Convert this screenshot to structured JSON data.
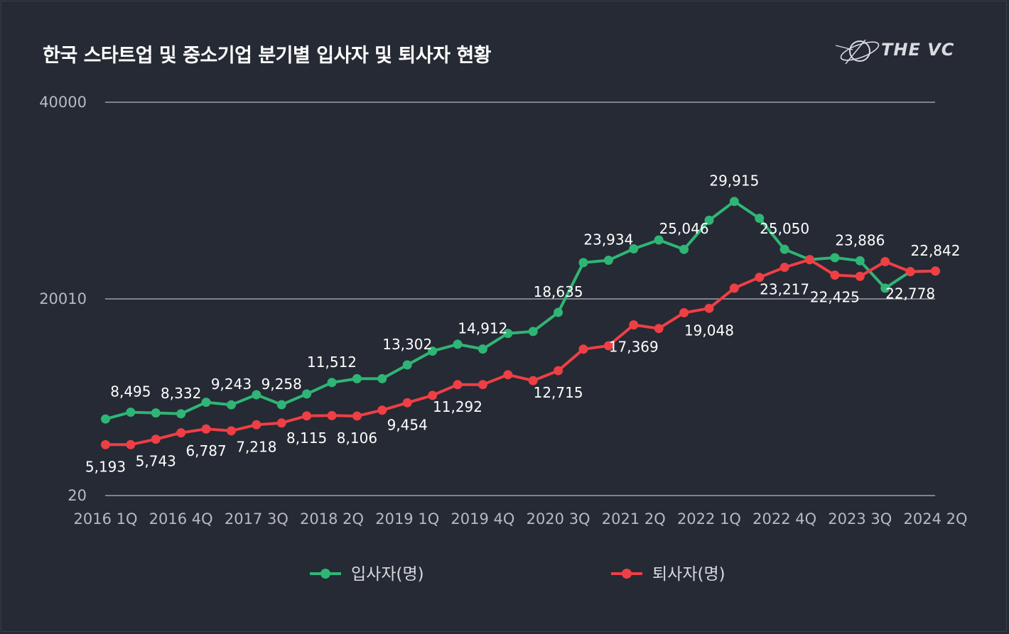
{
  "title": "한국 스타트업 및 중소기업 분기별 입사자 및 퇴사자 현황",
  "brand": "THE VC",
  "colors": {
    "background": "#252a34",
    "hires": "#2fb575",
    "leavers": "#ee3f45",
    "grid": "#d9dbe0"
  },
  "chart_data": {
    "type": "line",
    "title": "한국 스타트업 및 중소기업 분기별 입사자 및 퇴사자 현황",
    "categories": [
      "2016 1Q",
      "2016 2Q",
      "2016 3Q",
      "2016 4Q",
      "2017 1Q",
      "2017 2Q",
      "2017 3Q",
      "2017 4Q",
      "2018 1Q",
      "2018 2Q",
      "2018 3Q",
      "2018 4Q",
      "2019 1Q",
      "2019 2Q",
      "2019 3Q",
      "2019 4Q",
      "2020 1Q",
      "2020 2Q",
      "2020 3Q",
      "2020 4Q",
      "2021 1Q",
      "2021 2Q",
      "2021 3Q",
      "2021 4Q",
      "2022 1Q",
      "2022 2Q",
      "2022 3Q",
      "2022 4Q",
      "2023 1Q",
      "2023 2Q",
      "2023 3Q",
      "2023 4Q",
      "2024 1Q",
      "2024 2Q"
    ],
    "x_tick_labels": [
      "2016 1Q",
      "2016 4Q",
      "2017 3Q",
      "2018 2Q",
      "2019 1Q",
      "2019 4Q",
      "2020 3Q",
      "2021 2Q",
      "2022 1Q",
      "2022 4Q",
      "2023 3Q",
      "2024 2Q"
    ],
    "y_tick_labels": [
      "20",
      "20010",
      "40000"
    ],
    "ylim": [
      20,
      40000
    ],
    "series": [
      {
        "name": "입사자(명)",
        "color": "#2fb575",
        "values": [
          7800,
          8495,
          8420,
          8332,
          9500,
          9243,
          10270,
          9258,
          10350,
          11512,
          11900,
          11900,
          13302,
          14700,
          15400,
          14912,
          16500,
          16700,
          18635,
          23700,
          23934,
          25100,
          26000,
          25046,
          28000,
          29915,
          28200,
          25050,
          24000,
          24200,
          23886,
          21100,
          22778,
          22842
        ],
        "labels": {
          "1": "8,495",
          "3": "8,332",
          "5": "9,243",
          "7": "9,258",
          "9": "11,512",
          "12": "13,302",
          "15": "14,912",
          "18": "18,635",
          "20": "23,934",
          "23": "25,046",
          "25": "29,915",
          "27": "25,050",
          "30": "23,886",
          "33": "22,842"
        }
      },
      {
        "name": "퇴사자(명)",
        "color": "#ee3f45",
        "values": [
          5193,
          5200,
          5743,
          6400,
          6787,
          6600,
          7218,
          7400,
          8115,
          8150,
          8106,
          8700,
          9454,
          10200,
          11292,
          11300,
          12300,
          11700,
          12715,
          14900,
          15250,
          17369,
          17000,
          18600,
          19048,
          21100,
          22200,
          23217,
          24000,
          22425,
          22300,
          23800,
          22778,
          22842
        ],
        "labels": {
          "0": "5,193",
          "2": "5,743",
          "4": "6,787",
          "6": "7,218",
          "8": "8,115",
          "10": "8,106",
          "12": "9,454",
          "14": "11,292",
          "18": "12,715",
          "21": "17,369",
          "24": "19,048",
          "27": "23,217",
          "29": "22,425",
          "32": "22,778"
        }
      }
    ],
    "legend": [
      "입사자(명)",
      "퇴사자(명)"
    ],
    "legend_position": "bottom",
    "grid": true
  }
}
